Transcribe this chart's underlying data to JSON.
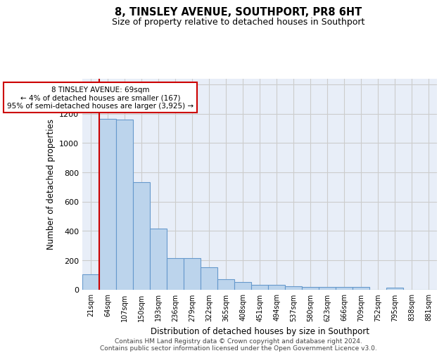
{
  "title": "8, TINSLEY AVENUE, SOUTHPORT, PR8 6HT",
  "subtitle": "Size of property relative to detached houses in Southport",
  "xlabel": "Distribution of detached houses by size in Southport",
  "ylabel": "Number of detached properties",
  "footer_line1": "Contains HM Land Registry data © Crown copyright and database right 2024.",
  "footer_line2": "Contains public sector information licensed under the Open Government Licence v3.0.",
  "bar_labels": [
    "21sqm",
    "64sqm",
    "107sqm",
    "150sqm",
    "193sqm",
    "236sqm",
    "279sqm",
    "322sqm",
    "365sqm",
    "408sqm",
    "451sqm",
    "494sqm",
    "537sqm",
    "580sqm",
    "623sqm",
    "666sqm",
    "709sqm",
    "752sqm",
    "795sqm",
    "838sqm",
    "881sqm"
  ],
  "bar_values": [
    105,
    1165,
    1160,
    730,
    415,
    215,
    215,
    150,
    70,
    50,
    30,
    30,
    20,
    15,
    15,
    15,
    15,
    0,
    10,
    0,
    0
  ],
  "bar_color": "#bcd4ec",
  "bar_edge_color": "#6699cc",
  "red_line_x": 0.5,
  "annotation_title": "8 TINSLEY AVENUE: 69sqm",
  "annotation_line1": "← 4% of detached houses are smaller (167)",
  "annotation_line2": "95% of semi-detached houses are larger (3,925) →",
  "annotation_box_color": "#ffffff",
  "annotation_box_edge": "#cc0000",
  "red_line_color": "#cc0000",
  "ylim": [
    0,
    1440
  ],
  "yticks": [
    0,
    200,
    400,
    600,
    800,
    1000,
    1200,
    1400
  ],
  "grid_color": "#cccccc",
  "bg_color": "#e8eef8"
}
